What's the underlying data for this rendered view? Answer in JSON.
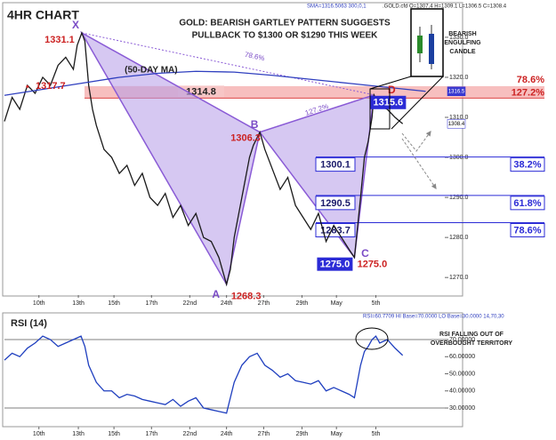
{
  "title": "4HR CHART",
  "headline": [
    "GOLD: BEARISH GARTLEY PATTERN SUGGESTS",
    "PULLBACK TO $1300 OR $1290 THIS WEEK"
  ],
  "info": "SMA=1316.5063  300,0,1",
  "ohlc_info": ".GOLD.cfd O=1307.4 H=1309.1 L=1306.5 C=1308.4",
  "inset_label": [
    "BEARISH",
    "ENGULFING",
    "CANDLE"
  ],
  "chart_data": [
    {
      "type": "line",
      "xlim": [
        0,
        115
      ],
      "ylim": [
        1265.6,
        1338.2
      ],
      "yticks": [
        {
          "value": 1330,
          "label": "1330.0"
        },
        {
          "value": 1320,
          "label": "1320.0"
        },
        {
          "value": 1310,
          "label": "1310.0"
        },
        {
          "value": 1300,
          "label": "1300.0"
        },
        {
          "value": 1290,
          "label": "1290.0"
        },
        {
          "value": 1280,
          "label": "1280.0"
        },
        {
          "value": 1270,
          "label": "1270.0"
        }
      ],
      "xticks": [
        {
          "value": 9,
          "label": "10th"
        },
        {
          "value": 19.3,
          "label": "13th"
        },
        {
          "value": 28.6,
          "label": "15th"
        },
        {
          "value": 38.4,
          "label": "17th"
        },
        {
          "value": 48.4,
          "label": "22nd"
        },
        {
          "value": 58,
          "label": "24th"
        },
        {
          "value": 67.7,
          "label": "27th"
        },
        {
          "value": 77.7,
          "label": "29th"
        },
        {
          "value": 86.7,
          "label": "May"
        },
        {
          "value": 97,
          "label": "5th"
        }
      ],
      "series": [
        {
          "color": "#1a1a1a",
          "x": [
            0,
            2,
            4,
            6,
            8,
            10,
            12,
            14,
            16,
            18,
            19,
            20.2,
            21,
            22,
            23,
            24,
            26,
            28,
            30,
            32,
            34,
            36,
            38,
            40,
            42,
            44,
            46,
            48,
            50,
            52,
            54,
            56,
            58,
            59,
            60,
            62,
            64,
            65,
            66.7,
            68,
            70,
            72,
            74,
            76,
            78,
            80,
            82,
            84,
            86,
            88,
            90,
            91.4,
            93,
            94,
            95,
            96,
            96.5,
            98,
            100,
            102,
            104
          ],
          "values": [
            1309,
            1315,
            1312,
            1318,
            1316,
            1320,
            1318,
            1323,
            1325,
            1322,
            1328,
            1331.1,
            1329,
            1318,
            1312,
            1308,
            1302,
            1300,
            1296,
            1298,
            1293,
            1296,
            1290,
            1288,
            1291,
            1285,
            1288,
            1283,
            1286,
            1280,
            1279,
            1275,
            1268.3,
            1272,
            1280,
            1290,
            1300,
            1303,
            1306.3,
            1302,
            1297,
            1292,
            1295,
            1288,
            1285,
            1282,
            1286,
            1279,
            1283,
            1280,
            1277,
            1275,
            1290,
            1300,
            1304,
            1310,
            1315.6,
            1313,
            1312,
            1310,
            1308.4
          ]
        },
        {
          "name": "(50-DAY MA)",
          "color": "#2f3fbf",
          "x": [
            0,
            10,
            20,
            30,
            40,
            50,
            60,
            70,
            80,
            90,
            100,
            110
          ],
          "values": [
            1315.5,
            1317,
            1318.5,
            1320,
            1321,
            1321.5,
            1321.3,
            1320.5,
            1319.5,
            1318.5,
            1317.5,
            1316.5
          ]
        }
      ],
      "ma_label": {
        "x": 6,
        "y": 1317.7,
        "label": "1317.7"
      },
      "pattern": {
        "points": [
          {
            "name": "X",
            "x": 20.2,
            "y": 1331.1,
            "label": "1331.1"
          },
          {
            "name": "A",
            "x": 58,
            "y": 1268.3,
            "label": "1268.3"
          },
          {
            "name": "B",
            "x": 66.7,
            "y": 1306.3,
            "label": "1306.3"
          },
          {
            "name": "C",
            "x": 91.4,
            "y": 1275,
            "label": "1275.0"
          },
          {
            "name": "D",
            "x": 96.5,
            "y": 1315.6,
            "label": "1315.6"
          }
        ],
        "xd_ratio": "78.6%",
        "bd_ratio": "127.2%"
      },
      "zone": {
        "top": 1317.8,
        "bottom": 1314.8,
        "label": "1314.8",
        "ratios": [
          "78.6%",
          "127.2%"
        ]
      },
      "levels": [
        {
          "value": 1300.1,
          "label": "1300.1",
          "ratio": "38.2%"
        },
        {
          "value": 1290.5,
          "label": "1290.5",
          "ratio": "61.8%"
        },
        {
          "value": 1283.7,
          "label": "1283.7",
          "ratio": "78.6%"
        }
      ],
      "price_markers": [
        {
          "value": 1316.5,
          "color": "#3a3ad0"
        },
        {
          "value": 1308.4,
          "color": "#ffffff"
        }
      ]
    },
    {
      "type": "line",
      "title": "RSI (14)",
      "info": "RSI=60.7709 HI Base=70.0000 LO Base=30.0000  14,70,30",
      "xlim": [
        0,
        115
      ],
      "ylim": [
        19.1,
        85.6
      ],
      "yticks": [
        {
          "value": 70,
          "label": "70.00000"
        },
        {
          "value": 60,
          "label": "60.00000"
        },
        {
          "value": 50,
          "label": "50.00000"
        },
        {
          "value": 40,
          "label": "40.00000"
        },
        {
          "value": 30,
          "label": "30.00000"
        }
      ],
      "xticks": [
        {
          "value": 9,
          "label": "10th"
        },
        {
          "value": 19.3,
          "label": "13th"
        },
        {
          "value": 28.6,
          "label": "15th"
        },
        {
          "value": 38.4,
          "label": "17th"
        },
        {
          "value": 48.4,
          "label": "22nd"
        },
        {
          "value": 58,
          "label": "24th"
        },
        {
          "value": 67.7,
          "label": "27th"
        },
        {
          "value": 77.7,
          "label": "29th"
        },
        {
          "value": 86.7,
          "label": "May"
        },
        {
          "value": 97,
          "label": "5th"
        }
      ],
      "base_lines": [
        70,
        30
      ],
      "series": [
        {
          "color": "#1f3fbf",
          "x": [
            0,
            2,
            4,
            6,
            8,
            10,
            12,
            14,
            16,
            18,
            20,
            21,
            22,
            24,
            26,
            28,
            30,
            32,
            34,
            36,
            38,
            40,
            42,
            44,
            46,
            48,
            50,
            52,
            54,
            56,
            58,
            60,
            62,
            64,
            66,
            68,
            70,
            72,
            74,
            76,
            78,
            80,
            82,
            84,
            86,
            88,
            90,
            91.4,
            93,
            94,
            95,
            96,
            97,
            98,
            100,
            102,
            104
          ],
          "values": [
            58,
            62,
            60,
            65,
            68,
            72,
            70,
            66,
            68,
            70,
            72,
            66,
            55,
            45,
            40,
            40,
            36,
            38,
            37,
            35,
            34,
            33,
            32,
            35,
            31,
            34,
            36,
            30,
            29,
            28,
            27,
            45,
            55,
            60,
            62,
            55,
            52,
            48,
            50,
            46,
            45,
            44,
            46,
            40,
            42,
            40,
            38,
            36,
            55,
            63,
            66,
            70,
            72,
            68,
            70,
            65,
            60.8
          ]
        }
      ],
      "annotation": [
        "RSI FALLING OUT OF",
        "OVERBOUGHT TERRITORY"
      ]
    }
  ]
}
